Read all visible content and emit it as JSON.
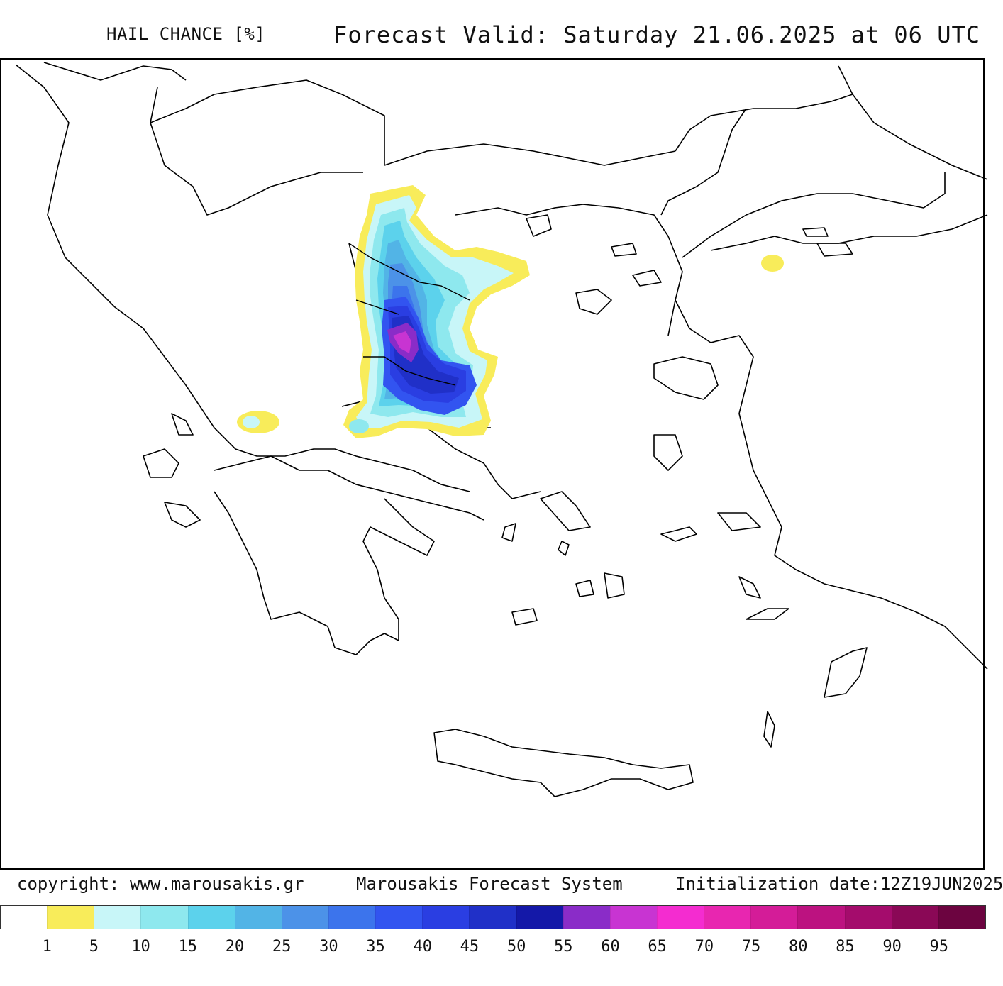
{
  "header": {
    "title": "HAIL CHANCE [%]",
    "valid": "Forecast Valid:  Saturday 21.06.2025 at 06 UTC"
  },
  "footer": {
    "copyright": "copyright: www.marousakis.gr",
    "system": "Marousakis Forecast System",
    "init": "Initialization date:12Z19JUN2025"
  },
  "legend": {
    "colors": [
      "#ffffff",
      "#f8ec5a",
      "#c8f6f8",
      "#8ee8ee",
      "#5cd2ec",
      "#52b4e6",
      "#4c92e8",
      "#3c74ec",
      "#3254f0",
      "#2a3ee2",
      "#2030c8",
      "#1418a8",
      "#8a2cc8",
      "#c834d2",
      "#f42cd0",
      "#e826b0",
      "#d41c98",
      "#bc1280",
      "#a40c6c",
      "#8a0856",
      "#6c0440"
    ],
    "labels": [
      "1",
      "5",
      "10",
      "15",
      "20",
      "25",
      "30",
      "35",
      "40",
      "45",
      "50",
      "55",
      "60",
      "65",
      "70",
      "75",
      "80",
      "85",
      "90",
      "95"
    ]
  }
}
